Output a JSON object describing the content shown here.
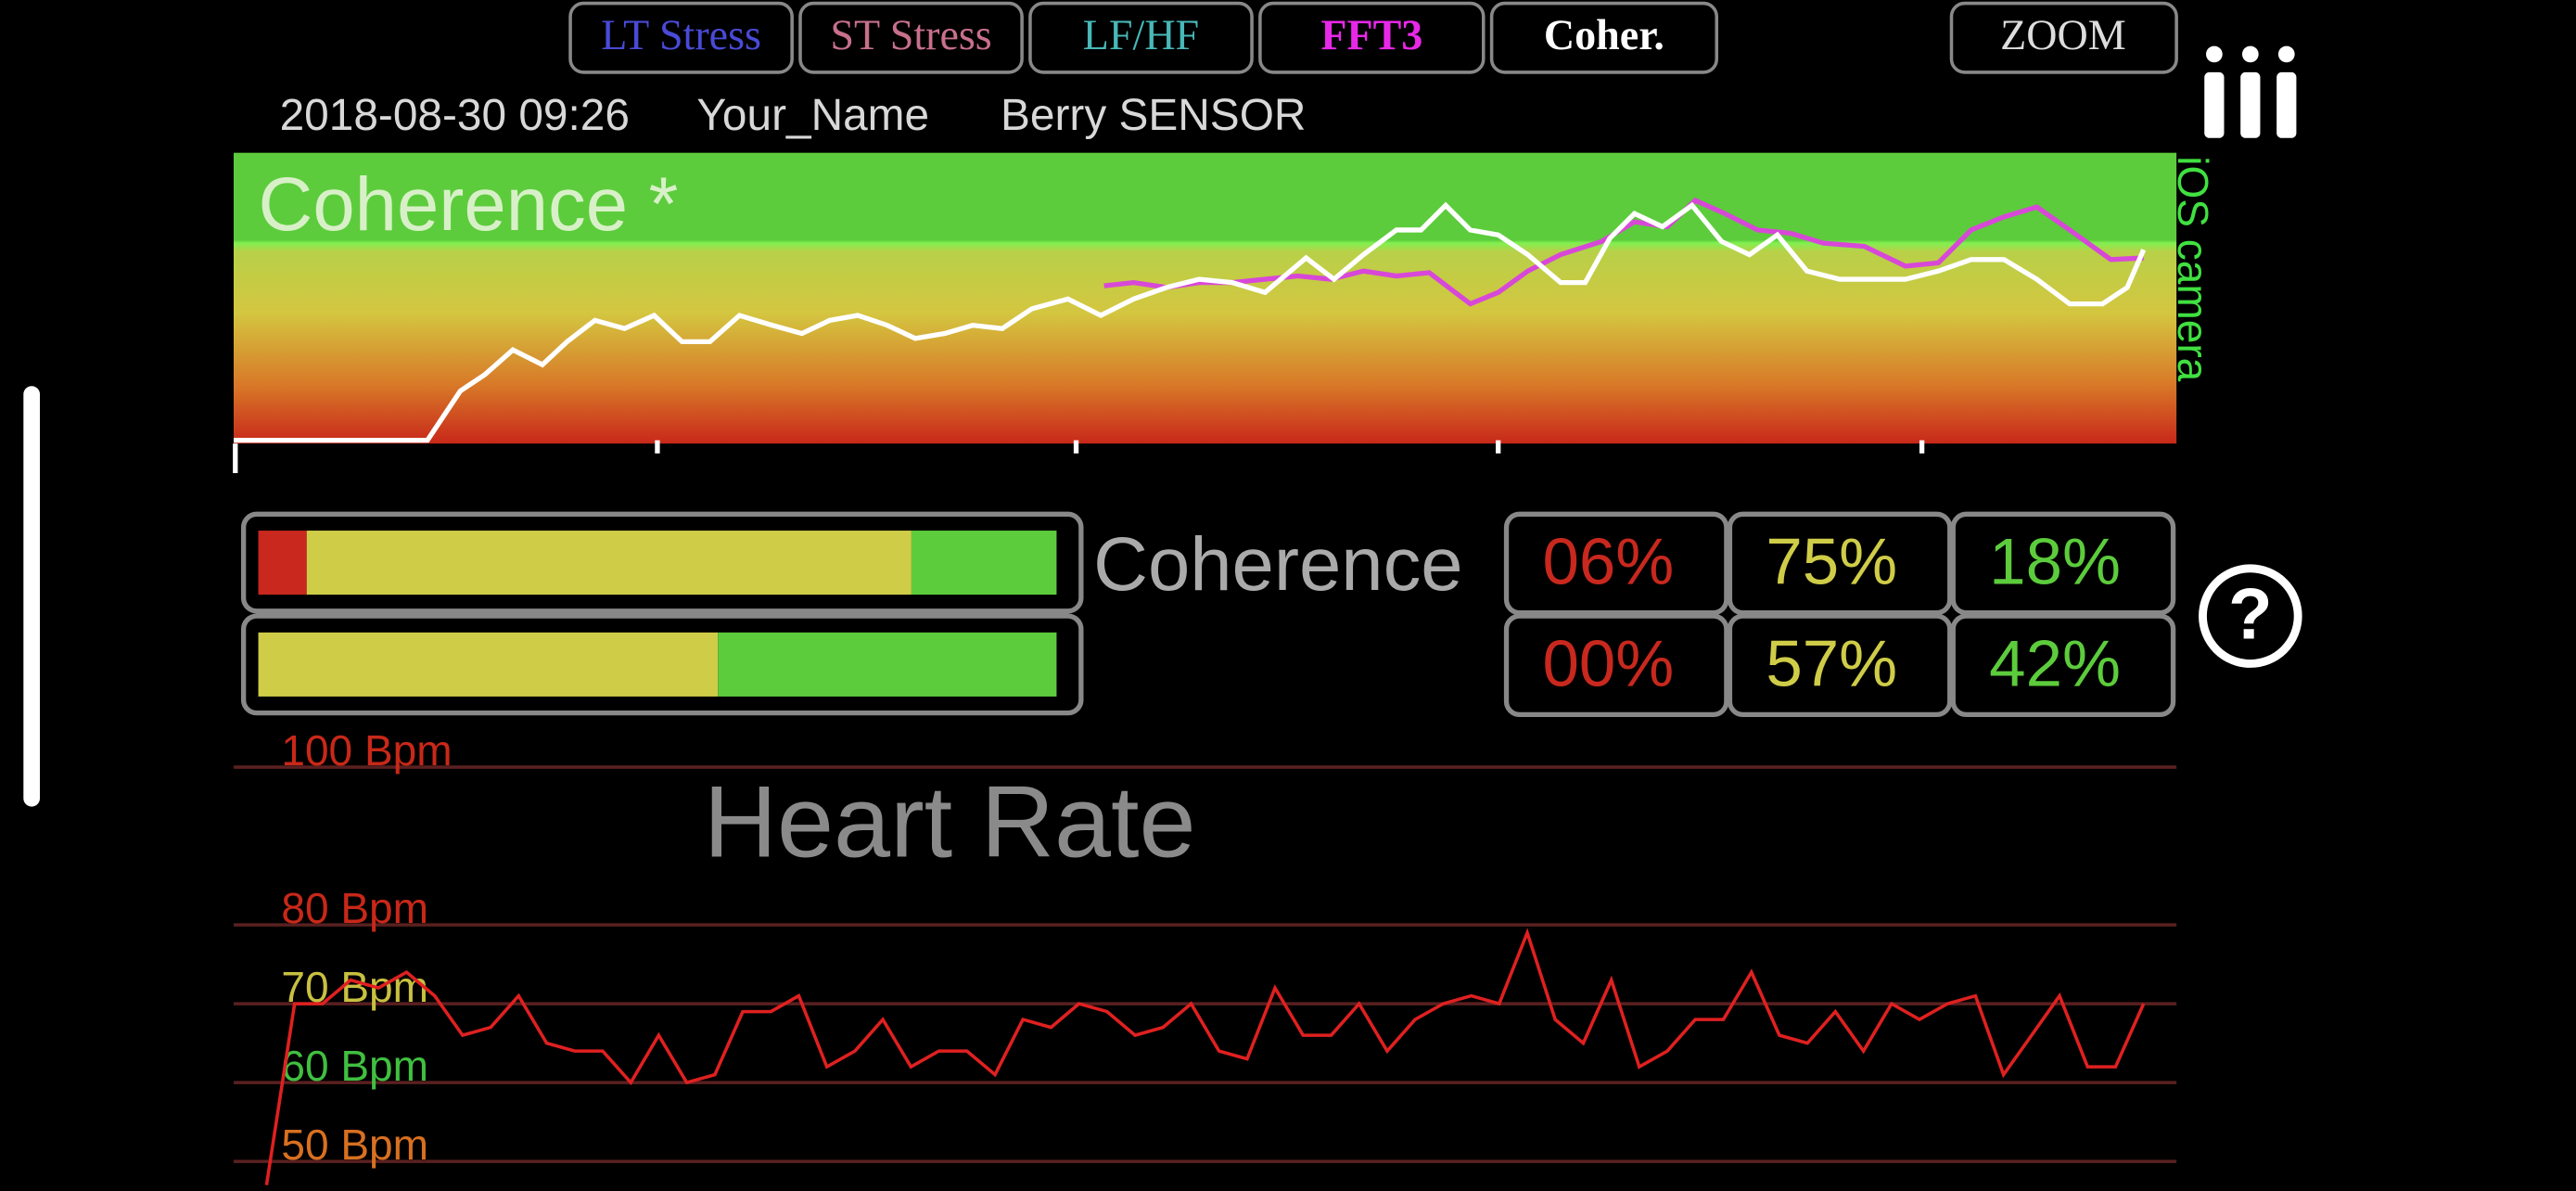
{
  "tabs": [
    "LT Stress",
    "ST Stress",
    "LF/HF",
    "FFT3",
    "Coher."
  ],
  "tab_colors": [
    "#4a4ad8",
    "#c8708c",
    "#48b8b8",
    "#e828e8",
    "#ffffff"
  ],
  "zoom": "ZOOM",
  "header": {
    "datetime": "2018-08-30 09:26",
    "name": "Your_Name",
    "sensor": "Berry SENSOR"
  },
  "coherence_chart": {
    "title": "Coherence *",
    "side_label": "iOS camera"
  },
  "coherence_summary": {
    "label": "Coherence",
    "colors": [
      "#c8281e",
      "#cfcc48",
      "#5ccc3c"
    ],
    "values": [
      [
        6,
        75,
        18
      ],
      [
        0,
        57,
        42
      ]
    ],
    "value_labels": [
      [
        "06%",
        "75%",
        "18%"
      ],
      [
        "00%",
        "57%",
        "42%"
      ]
    ]
  },
  "help": "?",
  "heart_rate": {
    "type": "line",
    "title": "Heart Rate",
    "color": "#e02020",
    "ylim": [
      46,
      102
    ],
    "yticks": [
      {
        "value": 100,
        "label": "100 Bpm"
      },
      {
        "value": 80,
        "label": "80 Bpm"
      },
      {
        "value": 70,
        "label": "70 Bpm"
      },
      {
        "value": 60,
        "label": "60 Bpm"
      },
      {
        "value": 50,
        "label": "50 Bpm"
      }
    ],
    "values": [
      47,
      70,
      70,
      73,
      72,
      74,
      71,
      66,
      67,
      71,
      65,
      64,
      64,
      60,
      66,
      60,
      61,
      69,
      69,
      71,
      62,
      64,
      68,
      62,
      64,
      64,
      61,
      68,
      67,
      70,
      69,
      66,
      67,
      70,
      64,
      63,
      72,
      66,
      66,
      70,
      64,
      68,
      70,
      71,
      70,
      79,
      68,
      65,
      73,
      62,
      64,
      68,
      68,
      74,
      66,
      65,
      69,
      64,
      70,
      68,
      70,
      71,
      61,
      66,
      71,
      62,
      62,
      70
    ]
  }
}
